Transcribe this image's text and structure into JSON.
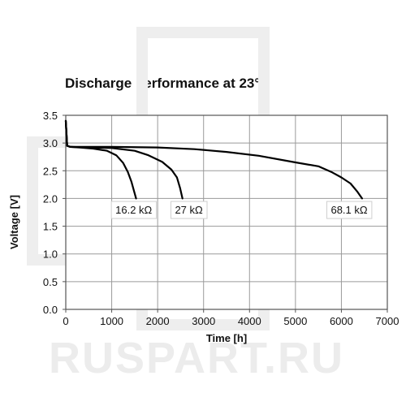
{
  "watermark": "RUSPART.RU",
  "chart_data": {
    "type": "line",
    "title": "Discharge performance at 23°C",
    "xlabel": "Time [h]",
    "ylabel": "Voltage [V]",
    "xlim": [
      0,
      7000
    ],
    "ylim": [
      0,
      3.5
    ],
    "x_ticks": [
      0,
      1000,
      2000,
      3000,
      4000,
      5000,
      6000,
      7000
    ],
    "x_tick_labels": [
      "0",
      "1000",
      "2000",
      "3000",
      "4000",
      "5000",
      "6000",
      "7000"
    ],
    "y_ticks": [
      0,
      0.5,
      1.0,
      1.5,
      2.0,
      2.5,
      3.0,
      3.5
    ],
    "y_tick_labels": [
      "0.0",
      "0.5",
      "1.0",
      "1.5",
      "2.0",
      "2.5",
      "3.0",
      "3.5"
    ],
    "grid": true,
    "series": [
      {
        "name": "16.2 kΩ",
        "x": [
          0,
          30,
          100,
          300,
          600,
          900,
          1100,
          1250,
          1350,
          1430,
          1490,
          1530
        ],
        "y": [
          3.4,
          2.95,
          2.93,
          2.92,
          2.9,
          2.86,
          2.78,
          2.64,
          2.48,
          2.3,
          2.12,
          2.0
        ]
      },
      {
        "name": "27 kΩ",
        "x": [
          0,
          30,
          100,
          500,
          1000,
          1500,
          1800,
          2100,
          2300,
          2420,
          2490,
          2540
        ],
        "y": [
          3.4,
          2.95,
          2.93,
          2.92,
          2.91,
          2.86,
          2.78,
          2.66,
          2.52,
          2.38,
          2.18,
          2.0
        ]
      },
      {
        "name": "68.1 kΩ",
        "x": [
          0,
          30,
          100,
          1000,
          2000,
          2800,
          3500,
          4200,
          5000,
          5500,
          5800,
          6000,
          6200,
          6350,
          6450
        ],
        "y": [
          3.4,
          2.95,
          2.93,
          2.93,
          2.92,
          2.89,
          2.84,
          2.77,
          2.65,
          2.58,
          2.47,
          2.38,
          2.27,
          2.12,
          2.0
        ]
      }
    ],
    "annotations": [
      {
        "text": "16.2 kΩ",
        "x": 1480,
        "y": 1.8
      },
      {
        "text": "27 kΩ",
        "x": 2680,
        "y": 1.8
      },
      {
        "text": "68.1 kΩ",
        "x": 6170,
        "y": 1.8
      }
    ]
  }
}
